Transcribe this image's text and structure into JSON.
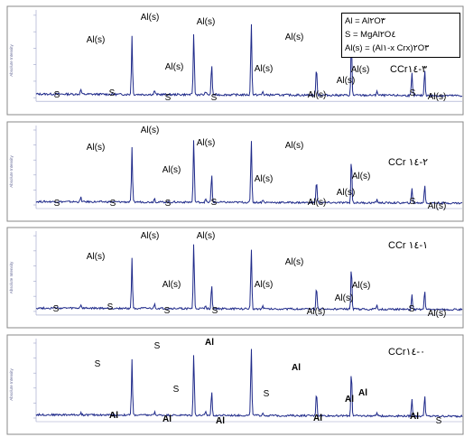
{
  "legend": {
    "lines": [
      "Al = Al٢O٣",
      "S = MgAl٢O٤",
      "Al(s) = (Al١-x Crx)٢O٣"
    ]
  },
  "chart_data": [
    {
      "type": "line",
      "panel_label": "CCr٣-١٤",
      "ylabel": "Absolute Intensity",
      "peaks": [
        {
          "label": "S",
          "x": 0.105,
          "h": 0.06
        },
        {
          "label": "Al(s)",
          "x": 0.225,
          "h": 0.72
        },
        {
          "label": "S",
          "x": 0.278,
          "h": 0.05
        },
        {
          "label": "Al(s)",
          "x": 0.37,
          "h": 0.77
        },
        {
          "label": "S",
          "x": 0.398,
          "h": 0.04
        },
        {
          "label": "Al(s)",
          "x": 0.412,
          "h": 0.38
        },
        {
          "label": "Al(s)",
          "x": 0.505,
          "h": 0.9
        },
        {
          "label": "S",
          "x": 0.532,
          "h": 0.04
        },
        {
          "label": "Al(s)",
          "x": 0.658,
          "h": 0.35
        },
        {
          "label": "Al(s)",
          "x": 0.74,
          "h": 0.67
        },
        {
          "label": "Al(s)",
          "x": 0.8,
          "h": 0.06
        },
        {
          "label": "Al(s)",
          "x": 0.882,
          "h": 0.27
        },
        {
          "label": "Al(s)",
          "x": 0.912,
          "h": 0.32
        },
        {
          "label": "S",
          "x": 1.045,
          "h": 0.08
        },
        {
          "label": "Al(s)",
          "x": 1.1,
          "h": 0.04
        }
      ]
    },
    {
      "type": "line",
      "panel_label": "CCr ٢-١٤",
      "ylabel": "Absolute Intensity",
      "peaks": [
        {
          "label": "S",
          "x": 0.105,
          "h": 0.06
        },
        {
          "label": "Al(s)",
          "x": 0.225,
          "h": 0.72
        },
        {
          "label": "S",
          "x": 0.278,
          "h": 0.05
        },
        {
          "label": "Al(s)",
          "x": 0.37,
          "h": 0.85
        },
        {
          "label": "S",
          "x": 0.398,
          "h": 0.04
        },
        {
          "label": "Al(s)",
          "x": 0.412,
          "h": 0.38
        },
        {
          "label": "Al(s)",
          "x": 0.505,
          "h": 0.86
        },
        {
          "label": "S",
          "x": 0.532,
          "h": 0.04
        },
        {
          "label": "Al(s)",
          "x": 0.658,
          "h": 0.3
        },
        {
          "label": "Al(s)",
          "x": 0.74,
          "h": 0.6
        },
        {
          "label": "Al(s)",
          "x": 0.8,
          "h": 0.05
        },
        {
          "label": "Al(s)",
          "x": 0.882,
          "h": 0.19
        },
        {
          "label": "Al(s)",
          "x": 0.912,
          "h": 0.25
        },
        {
          "label": "S",
          "x": 1.045,
          "h": 0.08
        },
        {
          "label": "Al(s)",
          "x": 1.1,
          "h": 0.04
        }
      ]
    },
    {
      "type": "line",
      "panel_label": "CCr ١-١٤",
      "ylabel": "Absolute Intensity",
      "peaks": [
        {
          "label": "S",
          "x": 0.105,
          "h": 0.05
        },
        {
          "label": "Al(s)",
          "x": 0.225,
          "h": 0.66
        },
        {
          "label": "S",
          "x": 0.278,
          "h": 0.06
        },
        {
          "label": "Al(s)",
          "x": 0.37,
          "h": 0.88
        },
        {
          "label": "S",
          "x": 0.398,
          "h": 0.04
        },
        {
          "label": "Al(s)",
          "x": 0.412,
          "h": 0.33
        },
        {
          "label": "Al(s)",
          "x": 0.505,
          "h": 0.82
        },
        {
          "label": "S",
          "x": 0.532,
          "h": 0.04
        },
        {
          "label": "Al(s)",
          "x": 0.658,
          "h": 0.3
        },
        {
          "label": "Al(s)",
          "x": 0.74,
          "h": 0.58
        },
        {
          "label": "Al(s)",
          "x": 0.8,
          "h": 0.05
        },
        {
          "label": "Al(s)",
          "x": 0.882,
          "h": 0.19
        },
        {
          "label": "Al(s)",
          "x": 0.912,
          "h": 0.26
        },
        {
          "label": "S",
          "x": 1.045,
          "h": 0.08
        },
        {
          "label": "Al(s)",
          "x": 1.1,
          "h": 0.04
        }
      ]
    },
    {
      "type": "line",
      "panel_label": "CCr٠-١٤",
      "ylabel": "Absolute Intensity",
      "peaks": [
        {
          "label": "S",
          "x": 0.105,
          "h": 0.03
        },
        {
          "label": "Al",
          "x": 0.225,
          "h": 0.74
        },
        {
          "label": "S",
          "x": 0.278,
          "h": 0.04
        },
        {
          "label": "Al",
          "x": 0.37,
          "h": 0.84
        },
        {
          "label": "S",
          "x": 0.398,
          "h": 0.04
        },
        {
          "label": "Al",
          "x": 0.412,
          "h": 0.33
        },
        {
          "label": "Al",
          "x": 0.505,
          "h": 0.93
        },
        {
          "label": "S",
          "x": 0.532,
          "h": 0.04
        },
        {
          "label": "Al",
          "x": 0.658,
          "h": 0.33
        },
        {
          "label": "Al",
          "x": 0.74,
          "h": 0.62
        },
        {
          "label": "Al",
          "x": 0.8,
          "h": 0.05
        },
        {
          "label": "Al",
          "x": 0.882,
          "h": 0.22
        },
        {
          "label": "Al",
          "x": 0.912,
          "h": 0.27
        },
        {
          "label": "S",
          "x": 1.045,
          "h": 0.06
        },
        {
          "label": "Al",
          "x": 1.1,
          "h": 0.04
        }
      ]
    }
  ]
}
